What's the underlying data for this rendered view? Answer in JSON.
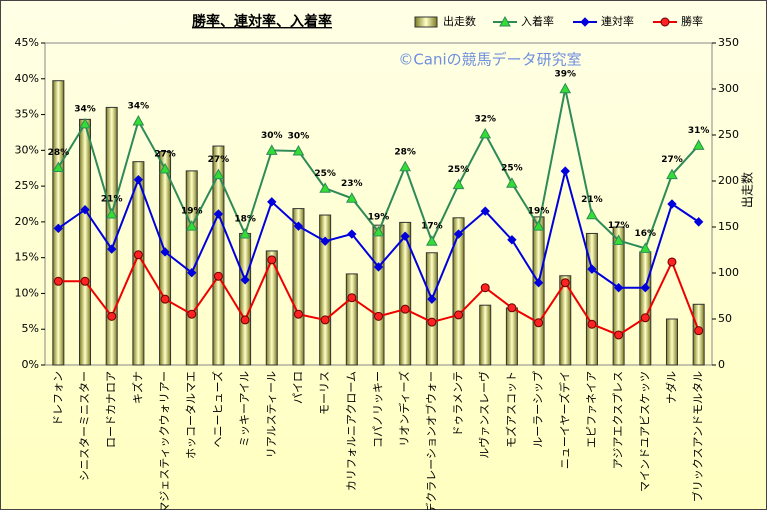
{
  "chart_data": {
    "type": "combo",
    "title": "勝率、連対率、入着率",
    "watermark": "©Caniの競馬データ研究室",
    "y2_label": "出走数",
    "categories": [
      "ドレフォン",
      "シニスターミニスター",
      "ロードカナロア",
      "キズナ",
      "マジェスティックウォリアー",
      "ホッコータルマエ",
      "ヘニーヒューズ",
      "ミッキーアイル",
      "リアルスティール",
      "パイロ",
      "モーリス",
      "カリフォルニアクローム",
      "コパノリッキー",
      "リオンディーズ",
      "デクラレーションオブウォー",
      "ドゥラメンテ",
      "ルヴァンスレーヴ",
      "モズアスコット",
      "ルーラーシップ",
      "ニューイヤーズデイ",
      "エピファネイア",
      "アジアエクスプレス",
      "マインドユアビスケッツ",
      "ナダル",
      "ブリックスアンドモルタル"
    ],
    "series": [
      {
        "name": "出走数",
        "type": "bar",
        "axis": "y2",
        "color": "#c8c864",
        "values": [
          309,
          267,
          280,
          221,
          232,
          211,
          238,
          143,
          124,
          170,
          163,
          99,
          152,
          155,
          122,
          160,
          65,
          62,
          161,
          97,
          143,
          150,
          123,
          50,
          66
        ]
      },
      {
        "name": "入着率",
        "type": "line",
        "marker": "triangle",
        "color": "#2e8b57",
        "values": [
          27.6,
          33.7,
          21.1,
          34.1,
          27.4,
          19.4,
          26.6,
          18.3,
          30.0,
          29.9,
          24.7,
          23.3,
          18.6,
          27.7,
          17.3,
          25.2,
          32.3,
          25.4,
          19.4,
          38.6,
          21.0,
          17.4,
          16.3,
          26.6,
          30.7
        ],
        "value_labels": [
          "28%",
          "34%",
          "21%",
          "34%",
          "27%",
          "19%",
          "27%",
          "18%",
          "30%",
          "30%",
          "25%",
          "23%",
          "19%",
          "28%",
          "17%",
          "25%",
          "32%",
          "25%",
          "19%",
          "39%",
          "21%",
          "17%",
          "16%",
          "27%",
          "31%"
        ]
      },
      {
        "name": "連対率",
        "type": "line",
        "marker": "diamond",
        "color": "#0000dd",
        "values": [
          19.1,
          21.7,
          16.2,
          25.9,
          15.8,
          12.9,
          21.1,
          11.9,
          22.8,
          19.4,
          17.3,
          18.3,
          13.7,
          18.0,
          9.2,
          18.3,
          21.5,
          17.5,
          11.5,
          27.1,
          13.4,
          10.8,
          10.8,
          22.5,
          20.0
        ]
      },
      {
        "name": "勝率",
        "type": "line",
        "marker": "circle",
        "color": "#ee0000",
        "values": [
          11.7,
          11.7,
          6.8,
          15.4,
          9.2,
          7.1,
          12.4,
          6.3,
          14.7,
          7.1,
          6.3,
          9.4,
          6.8,
          7.8,
          6.0,
          7.0,
          10.8,
          8.0,
          5.9,
          11.5,
          5.7,
          4.2,
          6.6,
          14.4,
          4.8
        ]
      }
    ],
    "ylim": [
      0,
      45
    ],
    "yticks": [
      {
        "value": 0,
        "label": "0%"
      },
      {
        "value": 5,
        "label": "5%"
      },
      {
        "value": 10,
        "label": "10%"
      },
      {
        "value": 15,
        "label": "15%"
      },
      {
        "value": 20,
        "label": "20%"
      },
      {
        "value": 25,
        "label": "25%"
      },
      {
        "value": 30,
        "label": "30%"
      },
      {
        "value": 35,
        "label": "35%"
      },
      {
        "value": 40,
        "label": "40%"
      },
      {
        "value": 45,
        "label": "45%"
      }
    ],
    "y2lim": [
      0,
      350
    ],
    "y2ticks": [
      0,
      50,
      100,
      150,
      200,
      250,
      300,
      350
    ],
    "grid": false
  }
}
